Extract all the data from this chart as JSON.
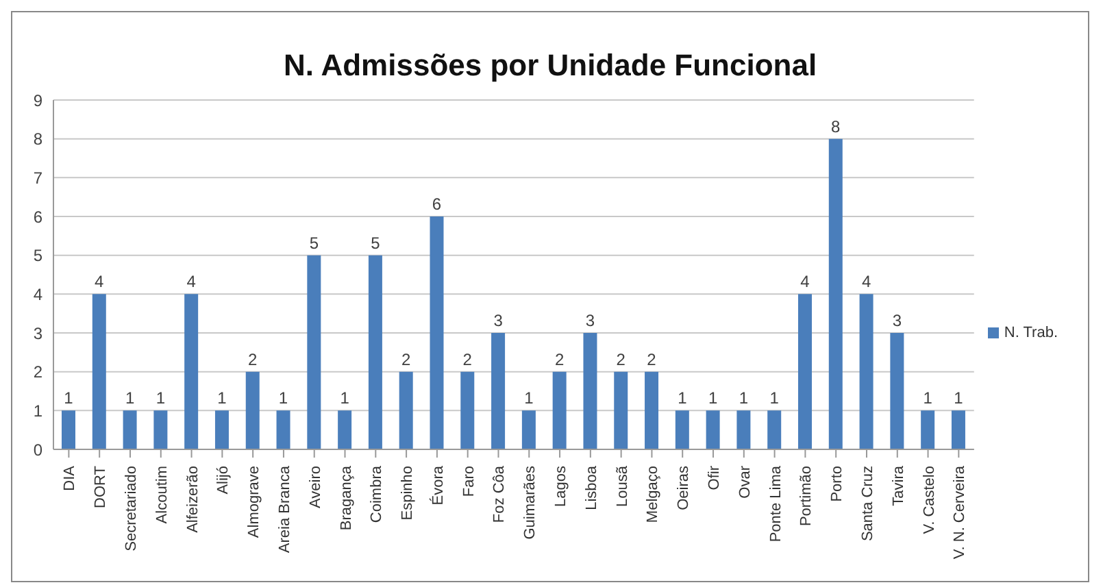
{
  "chart_data": {
    "type": "bar",
    "title": "N. Admissões por Unidade Funcional",
    "categories": [
      "DIA",
      "DORT",
      "Secretariado",
      "Alcoutim",
      "Alfeizerão",
      "Alijó",
      "Almograve",
      "Areia Branca",
      "Aveiro",
      "Bragança",
      "Coimbra",
      "Espinho",
      "Évora",
      "Faro",
      "Foz Côa",
      "Guimarães",
      "Lagos",
      "Lisboa",
      "Lousã",
      "Melgaço",
      "Oeiras",
      "Ofir",
      "Ovar",
      "Ponte Lima",
      "Portimão",
      "Porto",
      "Santa Cruz",
      "Tavira",
      "V. Castelo",
      "V. N. Cerveira"
    ],
    "series": [
      {
        "name": "N. Trab.",
        "color": "#4a7ebb",
        "values": [
          1,
          4,
          1,
          1,
          4,
          1,
          2,
          1,
          5,
          1,
          5,
          2,
          6,
          2,
          3,
          1,
          2,
          3,
          2,
          2,
          1,
          1,
          1,
          1,
          4,
          8,
          4,
          3,
          1,
          1
        ]
      }
    ],
    "ylim": [
      0,
      9
    ],
    "yticks": [
      0,
      1,
      2,
      3,
      4,
      5,
      6,
      7,
      8,
      9
    ],
    "grid": "y",
    "legend": "right",
    "data_labels": true
  }
}
